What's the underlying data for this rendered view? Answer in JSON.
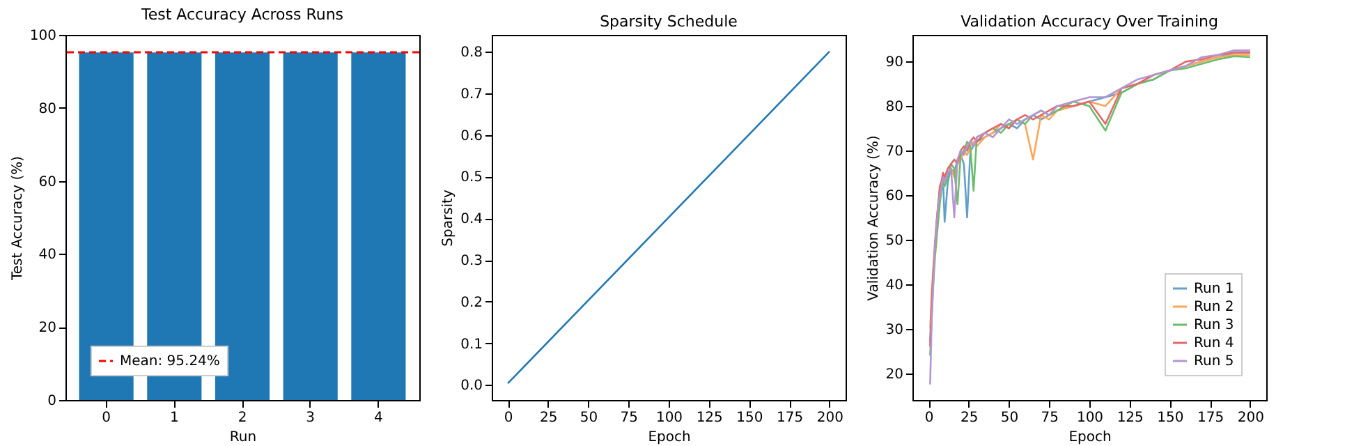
{
  "chart_data": [
    {
      "type": "bar",
      "title": "Test Accuracy Across Runs",
      "xlabel": "Run",
      "ylabel": "Test Accuracy (%)",
      "categories": [
        "0",
        "1",
        "2",
        "3",
        "4"
      ],
      "values": [
        95.2,
        95.2,
        95.2,
        95.2,
        95.2
      ],
      "color": "#1f77b4",
      "ylim": [
        0,
        100
      ],
      "yticks": [
        0,
        20,
        40,
        60,
        80,
        100
      ],
      "ref_lines": [
        {
          "axis": "y",
          "value": 95.24,
          "label": "Mean: 95.24%",
          "color": "#ff0000",
          "line_style": "dashed"
        }
      ],
      "legend": "bottom left"
    },
    {
      "type": "line",
      "title": "Sparsity Schedule",
      "xlabel": "Epoch",
      "ylabel": "Sparsity",
      "x": [
        0,
        200
      ],
      "values": [
        0.004,
        0.8
      ],
      "color": "#1f77b4",
      "xlim": [
        -10,
        210
      ],
      "xticks": [
        0,
        25,
        50,
        75,
        100,
        125,
        150,
        175,
        200
      ],
      "ylim": [
        -0.036,
        0.84
      ],
      "yticks": [
        {
          "value": 0,
          "label": "0.0"
        },
        0.1,
        0.2,
        0.3,
        0.4,
        0.5,
        0.6,
        0.7,
        0.8
      ]
    },
    {
      "type": "line",
      "title": "Validation Accuracy Over Training",
      "xlabel": "Epoch",
      "ylabel": "Validation Accuracy (%)",
      "x": [
        1,
        2,
        3,
        4,
        5,
        6,
        7,
        8,
        9,
        10,
        12,
        14,
        16,
        18,
        20,
        22,
        24,
        26,
        28,
        30,
        35,
        40,
        45,
        50,
        55,
        60,
        65,
        70,
        75,
        80,
        90,
        100,
        110,
        120,
        130,
        140,
        150,
        160,
        170,
        180,
        190,
        200
      ],
      "xlim": [
        -10,
        210
      ],
      "xticks": [
        0,
        25,
        50,
        75,
        100,
        125,
        150,
        175,
        200
      ],
      "ylim": [
        14,
        96
      ],
      "yticks": [
        20,
        30,
        40,
        50,
        60,
        70,
        80,
        90
      ],
      "legend": "bottom right",
      "series": [
        {
          "name": "Run 1",
          "color": "#62a0cb",
          "values": [
            27,
            36,
            42,
            48,
            52,
            57,
            60,
            62,
            64,
            54,
            63,
            66,
            65,
            68,
            69,
            67,
            55,
            70,
            71,
            72,
            73,
            74,
            75,
            76,
            75,
            77,
            78,
            77,
            78,
            79,
            80,
            81,
            82,
            83,
            85,
            86,
            88,
            89,
            90,
            91,
            92,
            92
          ]
        },
        {
          "name": "Run 2",
          "color": "#ffa556",
          "values": [
            30,
            38,
            44,
            49,
            54,
            58,
            61,
            63,
            62,
            64,
            65,
            66,
            64,
            67,
            68,
            70,
            69,
            71,
            72,
            71,
            73,
            74,
            76,
            75,
            77,
            76,
            68,
            78,
            77,
            79,
            80,
            81,
            80,
            84,
            85,
            87,
            88,
            89,
            90,
            91,
            91.5,
            91.5
          ]
        },
        {
          "name": "Run 3",
          "color": "#6bbd6b",
          "values": [
            24,
            33,
            40,
            46,
            50,
            54,
            58,
            61,
            63,
            62,
            64,
            67,
            66,
            58,
            69,
            70,
            72,
            71,
            61,
            73,
            74,
            75,
            74,
            76,
            77,
            76,
            78,
            79,
            78,
            79,
            81,
            80,
            74.5,
            83,
            85,
            86,
            88,
            88.5,
            89.5,
            90.5,
            91.2,
            91
          ]
        },
        {
          "name": "Run 4",
          "color": "#e26869",
          "values": [
            26,
            37,
            43,
            49,
            54,
            58,
            62,
            63,
            65,
            64,
            66,
            67,
            68,
            67,
            70,
            71,
            70,
            72,
            73,
            72,
            74,
            75,
            76,
            75,
            77,
            78,
            77,
            78,
            79,
            80,
            80,
            81,
            76,
            84,
            85,
            87,
            88,
            90,
            90.5,
            91.5,
            92,
            92
          ]
        },
        {
          "name": "Run 5",
          "color": "#b495d1",
          "values": [
            17.5,
            32,
            41,
            48,
            53,
            58,
            60,
            62,
            64,
            63,
            65,
            66,
            55,
            68,
            70,
            69,
            71,
            72,
            71,
            73,
            74,
            73,
            75,
            77,
            76,
            77,
            78,
            79,
            78,
            80,
            81,
            82,
            82,
            84,
            86,
            87,
            88,
            89,
            91,
            91.5,
            92.5,
            92.5
          ]
        }
      ]
    }
  ]
}
